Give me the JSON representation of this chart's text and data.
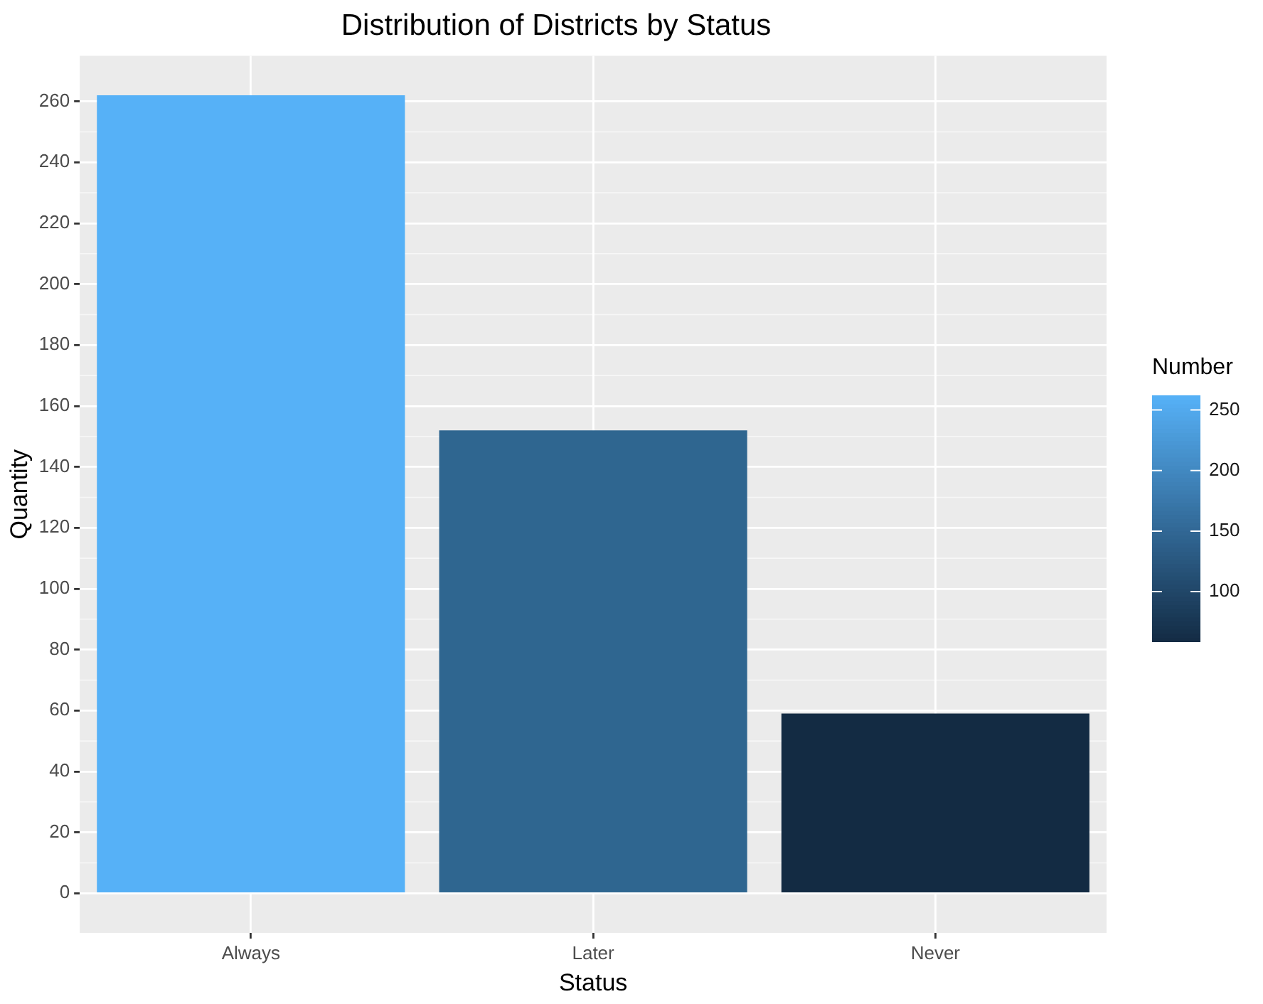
{
  "chart_data": {
    "type": "bar",
    "title": "Distribution of Districts by Status",
    "xlabel": "Status",
    "ylabel": "Quantity",
    "categories": [
      "Always",
      "Later",
      "Never"
    ],
    "values": [
      262,
      152,
      59
    ],
    "colors": [
      "#56b1f7",
      "#2f6690",
      "#132b43"
    ],
    "ylim": [
      -13,
      275
    ],
    "yticks": [
      0,
      20,
      40,
      60,
      80,
      100,
      120,
      140,
      160,
      180,
      200,
      220,
      240,
      260
    ],
    "clabel": "Number",
    "clim": [
      59,
      262
    ],
    "cticks": [
      100,
      150,
      200,
      250
    ],
    "grid": true
  }
}
